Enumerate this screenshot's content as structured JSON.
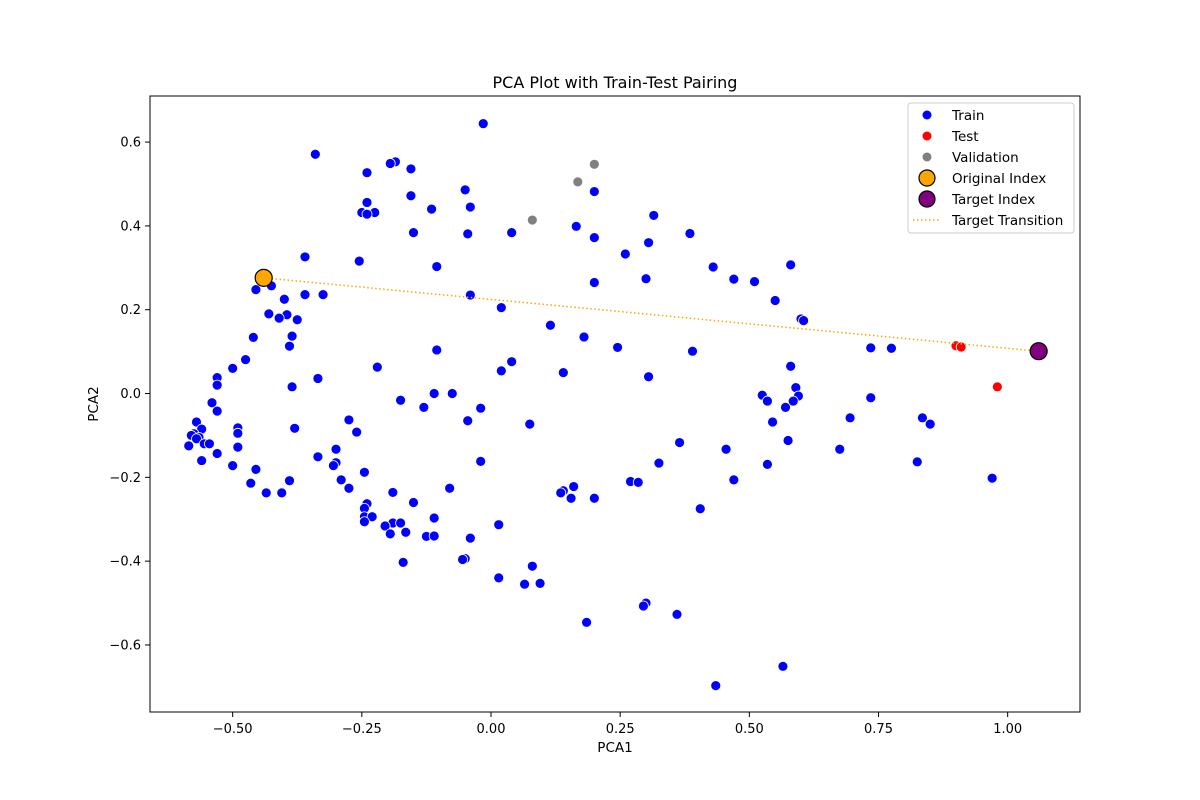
{
  "chart_data": {
    "type": "scatter",
    "title": "PCA Plot with Train-Test Pairing",
    "xlabel": "PCA1",
    "ylabel": "PCA2",
    "xlim": [
      -0.66,
      1.14
    ],
    "ylim": [
      -0.76,
      0.71
    ],
    "xticks": [
      "−0.50",
      "−0.25",
      "0.00",
      "0.25",
      "0.50",
      "0.75",
      "1.00"
    ],
    "xtick_values": [
      -0.5,
      -0.25,
      0.0,
      0.25,
      0.5,
      0.75,
      1.0
    ],
    "yticks": [
      "−0.6",
      "−0.4",
      "−0.2",
      "0.0",
      "0.2",
      "0.4",
      "0.6"
    ],
    "ytick_values": [
      -0.6,
      -0.4,
      -0.2,
      0.0,
      0.2,
      0.4,
      0.6
    ],
    "grid": false,
    "legend_position": "top-right",
    "series": [
      {
        "name": "Train",
        "color": "#0000ff",
        "points": [
          [
            -0.015,
            0.644
          ],
          [
            -0.34,
            0.571
          ],
          [
            -0.185,
            0.553
          ],
          [
            -0.195,
            0.549
          ],
          [
            -0.155,
            0.536
          ],
          [
            -0.24,
            0.527
          ],
          [
            0.2,
            0.482
          ],
          [
            -0.05,
            0.486
          ],
          [
            -0.155,
            0.472
          ],
          [
            -0.24,
            0.456
          ],
          [
            -0.04,
            0.445
          ],
          [
            -0.115,
            0.44
          ],
          [
            -0.25,
            0.432
          ],
          [
            -0.225,
            0.432
          ],
          [
            -0.24,
            0.428
          ],
          [
            0.315,
            0.425
          ],
          [
            0.165,
            0.399
          ],
          [
            0.04,
            0.384
          ],
          [
            -0.15,
            0.384
          ],
          [
            -0.045,
            0.381
          ],
          [
            0.385,
            0.382
          ],
          [
            0.2,
            0.372
          ],
          [
            0.305,
            0.36
          ],
          [
            0.26,
            0.333
          ],
          [
            -0.36,
            0.326
          ],
          [
            -0.255,
            0.316
          ],
          [
            0.58,
            0.307
          ],
          [
            0.43,
            0.302
          ],
          [
            -0.105,
            0.303
          ],
          [
            0.47,
            0.273
          ],
          [
            0.3,
            0.274
          ],
          [
            0.51,
            0.267
          ],
          [
            0.2,
            0.265
          ],
          [
            -0.425,
            0.257
          ],
          [
            -0.455,
            0.248
          ],
          [
            -0.36,
            0.236
          ],
          [
            -0.325,
            0.236
          ],
          [
            -0.04,
            0.235
          ],
          [
            -0.4,
            0.225
          ],
          [
            0.55,
            0.222
          ],
          [
            0.02,
            0.205
          ],
          [
            -0.43,
            0.19
          ],
          [
            -0.395,
            0.188
          ],
          [
            -0.41,
            0.18
          ],
          [
            -0.375,
            0.176
          ],
          [
            0.6,
            0.178
          ],
          [
            0.605,
            0.174
          ],
          [
            0.115,
            0.163
          ],
          [
            -0.385,
            0.137
          ],
          [
            0.18,
            0.135
          ],
          [
            -0.46,
            0.134
          ],
          [
            -0.39,
            0.113
          ],
          [
            0.245,
            0.11
          ],
          [
            0.735,
            0.109
          ],
          [
            0.775,
            0.108
          ],
          [
            -0.105,
            0.104
          ],
          [
            0.39,
            0.101
          ],
          [
            -0.475,
            0.081
          ],
          [
            0.04,
            0.076
          ],
          [
            -0.22,
            0.063
          ],
          [
            0.58,
            0.065
          ],
          [
            -0.5,
            0.06
          ],
          [
            0.02,
            0.054
          ],
          [
            0.14,
            0.05
          ],
          [
            0.305,
            0.04
          ],
          [
            -0.53,
            0.038
          ],
          [
            -0.335,
            0.036
          ],
          [
            -0.53,
            0.02
          ],
          [
            -0.385,
            0.016
          ],
          [
            0.59,
            0.014
          ],
          [
            -0.11,
            0.0
          ],
          [
            -0.075,
            0.0
          ],
          [
            0.525,
            -0.004
          ],
          [
            0.595,
            -0.006
          ],
          [
            -0.54,
            -0.022
          ],
          [
            0.535,
            -0.018
          ],
          [
            0.585,
            -0.018
          ],
          [
            -0.175,
            -0.016
          ],
          [
            0.57,
            -0.033
          ],
          [
            -0.13,
            -0.033
          ],
          [
            -0.02,
            -0.035
          ],
          [
            -0.53,
            -0.042
          ],
          [
            0.735,
            -0.01
          ],
          [
            0.695,
            -0.058
          ],
          [
            0.835,
            -0.058
          ],
          [
            -0.275,
            -0.063
          ],
          [
            -0.045,
            -0.065
          ],
          [
            0.545,
            -0.068
          ],
          [
            0.85,
            -0.073
          ],
          [
            -0.57,
            -0.068
          ],
          [
            0.075,
            -0.073
          ],
          [
            -0.56,
            -0.085
          ],
          [
            -0.38,
            -0.083
          ],
          [
            -0.49,
            -0.082
          ],
          [
            -0.26,
            -0.092
          ],
          [
            -0.575,
            -0.096
          ],
          [
            -0.58,
            -0.1
          ],
          [
            -0.49,
            -0.095
          ],
          [
            -0.565,
            -0.105
          ],
          [
            -0.57,
            -0.108
          ],
          [
            -0.555,
            -0.12
          ],
          [
            -0.545,
            -0.12
          ],
          [
            -0.585,
            -0.125
          ],
          [
            -0.49,
            -0.128
          ],
          [
            0.365,
            -0.117
          ],
          [
            0.575,
            -0.112
          ],
          [
            0.455,
            -0.133
          ],
          [
            0.675,
            -0.133
          ],
          [
            -0.3,
            -0.133
          ],
          [
            -0.53,
            -0.143
          ],
          [
            -0.335,
            -0.151
          ],
          [
            -0.56,
            -0.16
          ],
          [
            -0.02,
            -0.162
          ],
          [
            0.825,
            -0.163
          ],
          [
            -0.3,
            -0.165
          ],
          [
            0.325,
            -0.166
          ],
          [
            0.535,
            -0.169
          ],
          [
            -0.305,
            -0.172
          ],
          [
            -0.5,
            -0.172
          ],
          [
            -0.455,
            -0.181
          ],
          [
            -0.245,
            -0.188
          ],
          [
            0.97,
            -0.202
          ],
          [
            -0.29,
            -0.206
          ],
          [
            -0.39,
            -0.208
          ],
          [
            0.47,
            -0.206
          ],
          [
            0.27,
            -0.21
          ],
          [
            0.285,
            -0.212
          ],
          [
            -0.465,
            -0.214
          ],
          [
            -0.08,
            -0.226
          ],
          [
            -0.275,
            -0.226
          ],
          [
            0.16,
            -0.222
          ],
          [
            0.14,
            -0.232
          ],
          [
            0.135,
            -0.237
          ],
          [
            -0.405,
            -0.237
          ],
          [
            -0.435,
            -0.237
          ],
          [
            -0.19,
            -0.236
          ],
          [
            0.155,
            -0.25
          ],
          [
            0.2,
            -0.25
          ],
          [
            -0.15,
            -0.26
          ],
          [
            -0.24,
            -0.263
          ],
          [
            -0.245,
            -0.274
          ],
          [
            0.405,
            -0.275
          ],
          [
            -0.245,
            -0.294
          ],
          [
            -0.23,
            -0.294
          ],
          [
            -0.11,
            -0.297
          ],
          [
            -0.245,
            -0.306
          ],
          [
            -0.19,
            -0.309
          ],
          [
            -0.175,
            -0.309
          ],
          [
            0.015,
            -0.313
          ],
          [
            -0.205,
            -0.316
          ],
          [
            -0.195,
            -0.335
          ],
          [
            -0.165,
            -0.331
          ],
          [
            -0.125,
            -0.341
          ],
          [
            -0.11,
            -0.34
          ],
          [
            -0.04,
            -0.345
          ],
          [
            -0.05,
            -0.394
          ],
          [
            -0.055,
            -0.396
          ],
          [
            -0.17,
            -0.403
          ],
          [
            0.08,
            -0.412
          ],
          [
            0.015,
            -0.44
          ],
          [
            0.095,
            -0.453
          ],
          [
            0.065,
            -0.455
          ],
          [
            0.3,
            -0.5
          ],
          [
            0.295,
            -0.507
          ],
          [
            0.36,
            -0.527
          ],
          [
            0.185,
            -0.546
          ],
          [
            0.565,
            -0.651
          ],
          [
            0.435,
            -0.697
          ]
        ]
      },
      {
        "name": "Test",
        "color": "#ff0000",
        "points": [
          [
            0.9,
            0.114
          ],
          [
            0.91,
            0.111
          ],
          [
            0.98,
            0.016
          ]
        ]
      },
      {
        "name": "Validation",
        "color": "#808080",
        "points": [
          [
            0.2,
            0.547
          ],
          [
            0.168,
            0.505
          ],
          [
            0.08,
            0.414
          ]
        ]
      },
      {
        "name": "Original Index",
        "color": "#ffa500",
        "points": [
          [
            -0.44,
            0.276
          ]
        ]
      },
      {
        "name": "Target Index",
        "color": "#800080",
        "points": [
          [
            1.06,
            0.101
          ]
        ]
      }
    ],
    "transition": {
      "name": "Target Transition",
      "color": "#ffa500",
      "from": [
        -0.44,
        0.276
      ],
      "to": [
        1.06,
        0.101
      ]
    },
    "legend": [
      {
        "label": "Train",
        "color": "#0000ff",
        "kind": "small-dot"
      },
      {
        "label": "Test",
        "color": "#ff0000",
        "kind": "small-dot"
      },
      {
        "label": "Validation",
        "color": "#808080",
        "kind": "small-dot"
      },
      {
        "label": "Original Index",
        "color": "#ffa500",
        "kind": "big-dot"
      },
      {
        "label": "Target Index",
        "color": "#800080",
        "kind": "big-dot"
      },
      {
        "label": "Target Transition",
        "color": "#ffa500",
        "kind": "dotted-line"
      }
    ]
  }
}
